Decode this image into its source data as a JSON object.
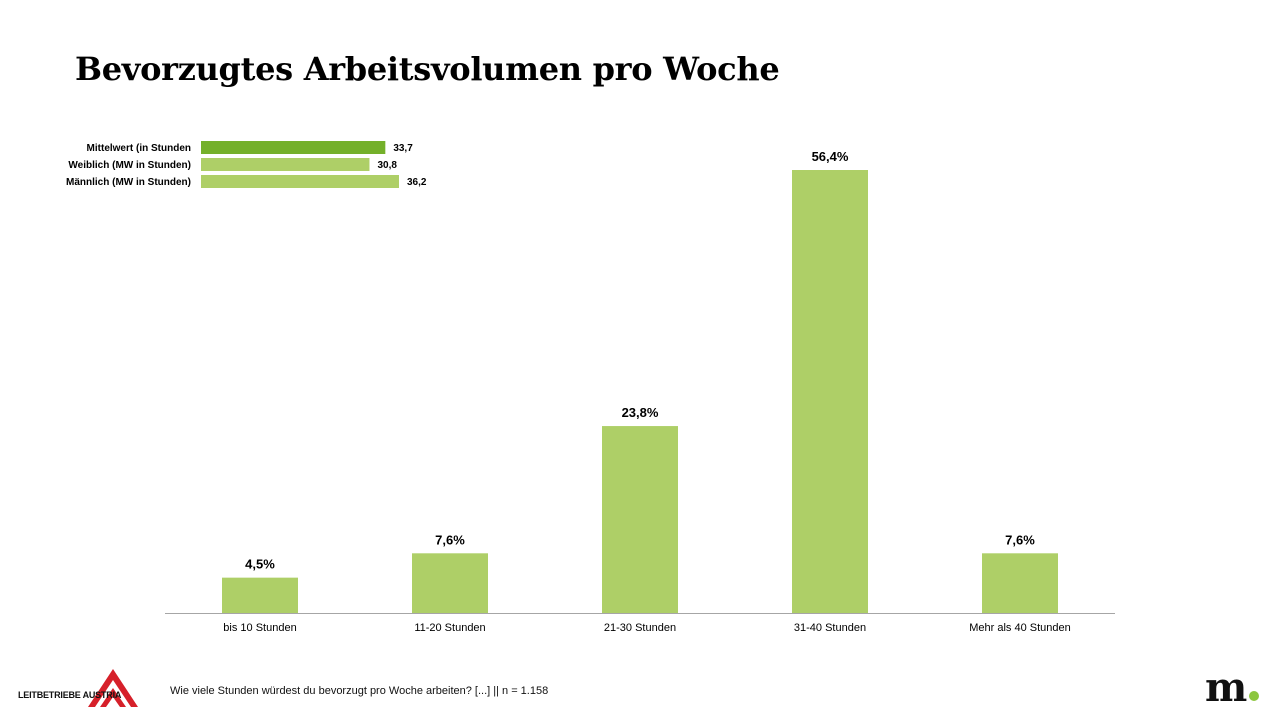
{
  "title": "Bevorzugtes Arbeitsvolumen pro Woche",
  "footnote": "Wie viele Stunden würdest du bevorzugt pro Woche arbeiten? [...] || n = 1.158",
  "logos": {
    "left_text": "LEITBETRIEBE AUSTRIA",
    "right_text": "m"
  },
  "colors": {
    "bar": "#aecf67",
    "mean_bar": "#74b02a",
    "axis": "#a6a6a6",
    "logo_red": "#d6202a",
    "logo_dot": "#8cc63f"
  },
  "chart_data": [
    {
      "type": "bar",
      "orientation": "vertical",
      "categories": [
        "bis 10 Stunden",
        "11-20 Stunden",
        "21-30 Stunden",
        "31-40 Stunden",
        "Mehr als 40 Stunden"
      ],
      "values": [
        4.5,
        7.6,
        23.8,
        56.4,
        7.6
      ],
      "data_labels": [
        "4,5%",
        "7,6%",
        "23,8%",
        "56,4%",
        "7,6%"
      ],
      "unit": "%",
      "ylim": [
        0,
        56.4
      ],
      "grid": false
    },
    {
      "type": "bar",
      "orientation": "horizontal",
      "position": "top-left",
      "categories": [
        "Mittelwert (in Stunden",
        "Weiblich (MW in Stunden)",
        "Männlich (MW in Stunden)"
      ],
      "values": [
        33.7,
        30.8,
        36.2
      ],
      "data_labels": [
        "33,7",
        "30,8",
        "36,2"
      ],
      "highlight_index": 0,
      "grid": false
    }
  ]
}
